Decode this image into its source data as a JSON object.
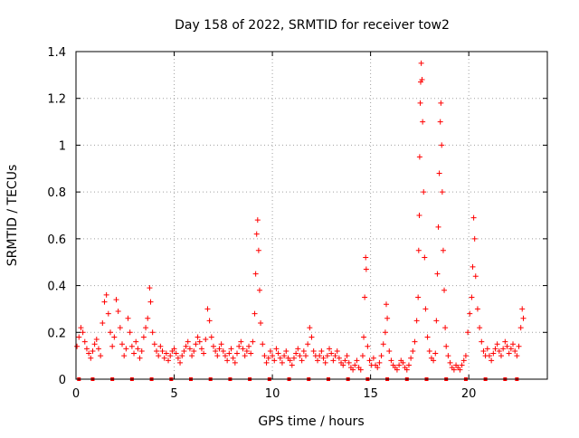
{
  "chart_data": {
    "type": "scatter",
    "title": "Day 158 of 2022, SRMTID for receiver tow2",
    "xlabel": "GPS time / hours",
    "ylabel": "SRMTID / TECUs",
    "xlim": [
      0,
      24
    ],
    "ylim": [
      0,
      1.4
    ],
    "x_ticks": [
      0,
      5,
      10,
      15,
      20
    ],
    "x_tick_labels": [
      "0",
      "5",
      "10",
      "15",
      "20"
    ],
    "y_ticks": [
      0,
      0.2,
      0.4,
      0.6,
      0.8,
      1.0,
      1.2,
      1.4
    ],
    "y_tick_labels": [
      "0",
      "0.2",
      "0.4",
      "0.6",
      "0.8",
      "1",
      "1.2",
      "1.4"
    ],
    "grid": true,
    "marker": "plus",
    "series": [
      {
        "name": "SRMTID",
        "color": "#ff0000",
        "points": [
          [
            0.05,
            0.14
          ],
          [
            0.15,
            0.18
          ],
          [
            0.25,
            0.22
          ],
          [
            0.35,
            0.2
          ],
          [
            0.45,
            0.16
          ],
          [
            0.55,
            0.13
          ],
          [
            0.65,
            0.11
          ],
          [
            0.75,
            0.09
          ],
          [
            0.85,
            0.12
          ],
          [
            0.95,
            0.15
          ],
          [
            1.05,
            0.17
          ],
          [
            1.15,
            0.13
          ],
          [
            1.25,
            0.1
          ],
          [
            1.35,
            0.24
          ],
          [
            1.45,
            0.33
          ],
          [
            1.55,
            0.36
          ],
          [
            1.65,
            0.28
          ],
          [
            1.75,
            0.2
          ],
          [
            1.85,
            0.14
          ],
          [
            1.95,
            0.18
          ],
          [
            2.05,
            0.34
          ],
          [
            2.15,
            0.29
          ],
          [
            2.25,
            0.22
          ],
          [
            2.35,
            0.15
          ],
          [
            2.45,
            0.1
          ],
          [
            2.55,
            0.13
          ],
          [
            2.65,
            0.26
          ],
          [
            2.75,
            0.2
          ],
          [
            2.85,
            0.14
          ],
          [
            2.95,
            0.11
          ],
          [
            3.05,
            0.16
          ],
          [
            3.15,
            0.13
          ],
          [
            3.25,
            0.09
          ],
          [
            3.35,
            0.12
          ],
          [
            3.45,
            0.18
          ],
          [
            3.55,
            0.22
          ],
          [
            3.65,
            0.26
          ],
          [
            3.75,
            0.39
          ],
          [
            3.8,
            0.33
          ],
          [
            3.9,
            0.2
          ],
          [
            4.0,
            0.15
          ],
          [
            4.1,
            0.12
          ],
          [
            4.2,
            0.1
          ],
          [
            4.3,
            0.14
          ],
          [
            4.4,
            0.12
          ],
          [
            4.5,
            0.09
          ],
          [
            4.6,
            0.11
          ],
          [
            4.7,
            0.08
          ],
          [
            4.8,
            0.1
          ],
          [
            4.9,
            0.12
          ],
          [
            5.0,
            0.13
          ],
          [
            5.1,
            0.11
          ],
          [
            5.2,
            0.09
          ],
          [
            5.3,
            0.07
          ],
          [
            5.4,
            0.1
          ],
          [
            5.5,
            0.12
          ],
          [
            5.6,
            0.14
          ],
          [
            5.7,
            0.16
          ],
          [
            5.8,
            0.13
          ],
          [
            5.9,
            0.1
          ],
          [
            6.0,
            0.12
          ],
          [
            6.1,
            0.15
          ],
          [
            6.2,
            0.18
          ],
          [
            6.3,
            0.16
          ],
          [
            6.4,
            0.13
          ],
          [
            6.5,
            0.11
          ],
          [
            6.6,
            0.17
          ],
          [
            6.7,
            0.3
          ],
          [
            6.8,
            0.25
          ],
          [
            6.9,
            0.18
          ],
          [
            7.0,
            0.14
          ],
          [
            7.1,
            0.12
          ],
          [
            7.2,
            0.1
          ],
          [
            7.3,
            0.13
          ],
          [
            7.4,
            0.15
          ],
          [
            7.5,
            0.12
          ],
          [
            7.6,
            0.1
          ],
          [
            7.7,
            0.08
          ],
          [
            7.8,
            0.11
          ],
          [
            7.9,
            0.13
          ],
          [
            8.0,
            0.09
          ],
          [
            8.1,
            0.07
          ],
          [
            8.2,
            0.11
          ],
          [
            8.3,
            0.14
          ],
          [
            8.4,
            0.16
          ],
          [
            8.5,
            0.13
          ],
          [
            8.6,
            0.1
          ],
          [
            8.7,
            0.12
          ],
          [
            8.8,
            0.14
          ],
          [
            8.9,
            0.11
          ],
          [
            9.0,
            0.16
          ],
          [
            9.1,
            0.28
          ],
          [
            9.15,
            0.45
          ],
          [
            9.2,
            0.62
          ],
          [
            9.25,
            0.68
          ],
          [
            9.3,
            0.55
          ],
          [
            9.35,
            0.38
          ],
          [
            9.4,
            0.24
          ],
          [
            9.5,
            0.15
          ],
          [
            9.6,
            0.1
          ],
          [
            9.7,
            0.07
          ],
          [
            9.8,
            0.09
          ],
          [
            9.9,
            0.12
          ],
          [
            10.0,
            0.1
          ],
          [
            10.1,
            0.08
          ],
          [
            10.2,
            0.13
          ],
          [
            10.3,
            0.11
          ],
          [
            10.4,
            0.09
          ],
          [
            10.5,
            0.07
          ],
          [
            10.6,
            0.1
          ],
          [
            10.7,
            0.12
          ],
          [
            10.8,
            0.09
          ],
          [
            10.9,
            0.08
          ],
          [
            11.0,
            0.06
          ],
          [
            11.1,
            0.09
          ],
          [
            11.2,
            0.11
          ],
          [
            11.3,
            0.13
          ],
          [
            11.4,
            0.1
          ],
          [
            11.5,
            0.08
          ],
          [
            11.6,
            0.12
          ],
          [
            11.7,
            0.1
          ],
          [
            11.8,
            0.15
          ],
          [
            11.9,
            0.22
          ],
          [
            12.0,
            0.18
          ],
          [
            12.1,
            0.12
          ],
          [
            12.2,
            0.1
          ],
          [
            12.3,
            0.08
          ],
          [
            12.4,
            0.1
          ],
          [
            12.5,
            0.12
          ],
          [
            12.6,
            0.09
          ],
          [
            12.7,
            0.07
          ],
          [
            12.8,
            0.1
          ],
          [
            12.9,
            0.13
          ],
          [
            13.0,
            0.11
          ],
          [
            13.1,
            0.08
          ],
          [
            13.2,
            0.1
          ],
          [
            13.3,
            0.12
          ],
          [
            13.4,
            0.09
          ],
          [
            13.5,
            0.07
          ],
          [
            13.6,
            0.06
          ],
          [
            13.7,
            0.08
          ],
          [
            13.8,
            0.1
          ],
          [
            13.9,
            0.07
          ],
          [
            14.0,
            0.05
          ],
          [
            14.1,
            0.04
          ],
          [
            14.2,
            0.06
          ],
          [
            14.3,
            0.08
          ],
          [
            14.4,
            0.05
          ],
          [
            14.5,
            0.04
          ],
          [
            14.6,
            0.1
          ],
          [
            14.65,
            0.18
          ],
          [
            14.7,
            0.35
          ],
          [
            14.75,
            0.52
          ],
          [
            14.78,
            0.47
          ],
          [
            14.85,
            0.14
          ],
          [
            14.95,
            0.08
          ],
          [
            15.05,
            0.06
          ],
          [
            15.15,
            0.09
          ],
          [
            15.25,
            0.06
          ],
          [
            15.35,
            0.05
          ],
          [
            15.45,
            0.07
          ],
          [
            15.55,
            0.1
          ],
          [
            15.65,
            0.15
          ],
          [
            15.75,
            0.2
          ],
          [
            15.8,
            0.32
          ],
          [
            15.85,
            0.26
          ],
          [
            15.95,
            0.12
          ],
          [
            16.05,
            0.08
          ],
          [
            16.15,
            0.06
          ],
          [
            16.25,
            0.05
          ],
          [
            16.35,
            0.04
          ],
          [
            16.45,
            0.06
          ],
          [
            16.55,
            0.08
          ],
          [
            16.65,
            0.07
          ],
          [
            16.75,
            0.05
          ],
          [
            16.85,
            0.04
          ],
          [
            16.95,
            0.06
          ],
          [
            17.05,
            0.09
          ],
          [
            17.15,
            0.12
          ],
          [
            17.25,
            0.16
          ],
          [
            17.35,
            0.25
          ],
          [
            17.42,
            0.35
          ],
          [
            17.45,
            0.55
          ],
          [
            17.48,
            0.7
          ],
          [
            17.5,
            0.95
          ],
          [
            17.53,
            1.18
          ],
          [
            17.55,
            1.27
          ],
          [
            17.58,
            1.35
          ],
          [
            17.62,
            1.28
          ],
          [
            17.65,
            1.1
          ],
          [
            17.7,
            0.8
          ],
          [
            17.75,
            0.52
          ],
          [
            17.8,
            0.3
          ],
          [
            17.9,
            0.18
          ],
          [
            18.0,
            0.12
          ],
          [
            18.1,
            0.09
          ],
          [
            18.2,
            0.08
          ],
          [
            18.3,
            0.11
          ],
          [
            18.35,
            0.25
          ],
          [
            18.4,
            0.45
          ],
          [
            18.45,
            0.65
          ],
          [
            18.5,
            0.88
          ],
          [
            18.55,
            1.1
          ],
          [
            18.58,
            1.18
          ],
          [
            18.62,
            1.0
          ],
          [
            18.65,
            0.8
          ],
          [
            18.7,
            0.55
          ],
          [
            18.75,
            0.38
          ],
          [
            18.8,
            0.22
          ],
          [
            18.85,
            0.14
          ],
          [
            18.95,
            0.1
          ],
          [
            19.05,
            0.07
          ],
          [
            19.15,
            0.05
          ],
          [
            19.25,
            0.04
          ],
          [
            19.35,
            0.06
          ],
          [
            19.45,
            0.05
          ],
          [
            19.55,
            0.04
          ],
          [
            19.65,
            0.06
          ],
          [
            19.75,
            0.08
          ],
          [
            19.85,
            0.1
          ],
          [
            19.95,
            0.2
          ],
          [
            20.05,
            0.28
          ],
          [
            20.15,
            0.35
          ],
          [
            20.2,
            0.48
          ],
          [
            20.25,
            0.69
          ],
          [
            20.3,
            0.6
          ],
          [
            20.35,
            0.44
          ],
          [
            20.45,
            0.3
          ],
          [
            20.55,
            0.22
          ],
          [
            20.65,
            0.16
          ],
          [
            20.75,
            0.12
          ],
          [
            20.85,
            0.1
          ],
          [
            20.95,
            0.13
          ],
          [
            21.05,
            0.1
          ],
          [
            21.15,
            0.08
          ],
          [
            21.25,
            0.11
          ],
          [
            21.35,
            0.13
          ],
          [
            21.45,
            0.15
          ],
          [
            21.55,
            0.12
          ],
          [
            21.65,
            0.1
          ],
          [
            21.75,
            0.13
          ],
          [
            21.85,
            0.16
          ],
          [
            21.95,
            0.14
          ],
          [
            22.05,
            0.11
          ],
          [
            22.15,
            0.13
          ],
          [
            22.25,
            0.15
          ],
          [
            22.35,
            0.12
          ],
          [
            22.45,
            0.1
          ],
          [
            22.55,
            0.14
          ],
          [
            22.65,
            0.22
          ],
          [
            22.72,
            0.3
          ],
          [
            22.78,
            0.26
          ]
        ]
      },
      {
        "name": "baseline",
        "color": "#ff0000",
        "marker": "square",
        "points": [
          [
            0.15,
            0
          ],
          [
            0.85,
            0
          ],
          [
            1.85,
            0
          ],
          [
            2.85,
            0
          ],
          [
            3.85,
            0
          ],
          [
            4.85,
            0
          ],
          [
            5.85,
            0
          ],
          [
            6.85,
            0
          ],
          [
            7.85,
            0
          ],
          [
            8.85,
            0
          ],
          [
            9.85,
            0
          ],
          [
            10.85,
            0
          ],
          [
            11.85,
            0
          ],
          [
            12.85,
            0
          ],
          [
            13.85,
            0
          ],
          [
            14.85,
            0
          ],
          [
            15.85,
            0
          ],
          [
            16.85,
            0
          ],
          [
            17.85,
            0
          ],
          [
            18.85,
            0
          ],
          [
            19.85,
            0
          ],
          [
            20.85,
            0
          ],
          [
            21.85,
            0
          ],
          [
            22.45,
            0
          ]
        ]
      }
    ]
  }
}
